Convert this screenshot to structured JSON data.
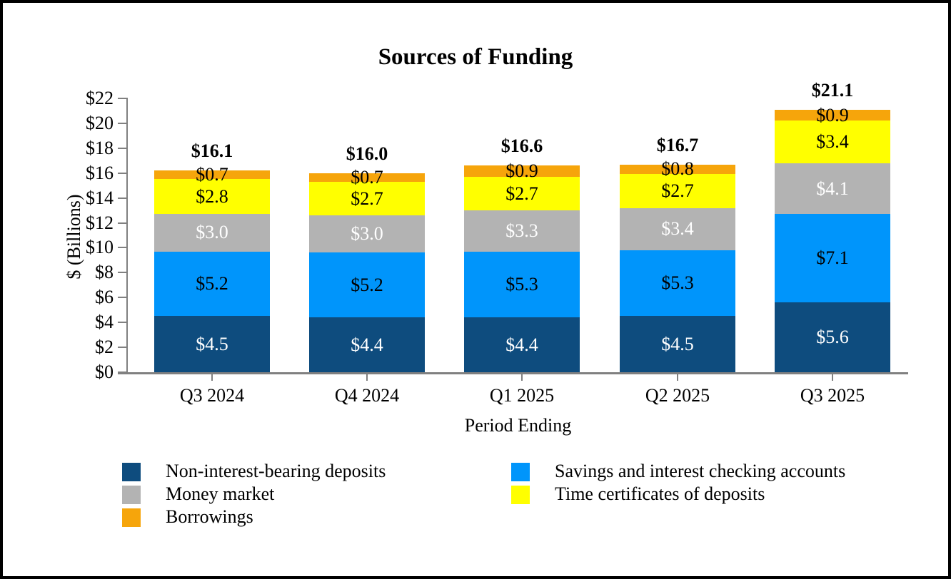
{
  "title": "Sources of Funding",
  "chart_data": {
    "type": "bar",
    "stacked": true,
    "title": "Sources of Funding",
    "xlabel": "Period Ending",
    "ylabel": "$ (Billions)",
    "ylim": [
      0,
      22
    ],
    "ytick_step": 2,
    "ytick_labels": [
      "$0",
      "$2",
      "$4",
      "$6",
      "$8",
      "$10",
      "$12",
      "$14",
      "$16",
      "$18",
      "$20",
      "$22"
    ],
    "grid": false,
    "legend_position": "bottom",
    "axis_color": "#808080",
    "categories": [
      "Q3 2024",
      "Q4 2024",
      "Q1 2025",
      "Q2 2025",
      "Q3 2025"
    ],
    "series": [
      {
        "name": "Non-interest-bearing deposits",
        "color": "#0E4C7E",
        "label_color": "#FFFFFF",
        "values": [
          4.5,
          4.4,
          4.4,
          4.5,
          5.6
        ],
        "labels": [
          "$4.5",
          "$4.4",
          "$4.4",
          "$4.5",
          "$5.6"
        ]
      },
      {
        "name": "Savings and interest checking accounts",
        "color": "#0095FB",
        "label_color": "#000000",
        "values": [
          5.2,
          5.2,
          5.3,
          5.3,
          7.1
        ],
        "labels": [
          "$5.2",
          "$5.2",
          "$5.3",
          "$5.3",
          "$7.1"
        ]
      },
      {
        "name": "Money market",
        "color": "#B3B3B3",
        "label_color": "#FFFFFF",
        "values": [
          3.0,
          3.0,
          3.3,
          3.4,
          4.1
        ],
        "labels": [
          "$3.0",
          "$3.0",
          "$3.3",
          "$3.4",
          "$4.1"
        ]
      },
      {
        "name": "Time certificates of deposits",
        "color": "#FFFF00",
        "label_color": "#000000",
        "values": [
          2.8,
          2.7,
          2.7,
          2.7,
          3.4
        ],
        "labels": [
          "$2.8",
          "$2.7",
          "$2.7",
          "$2.7",
          "$3.4"
        ]
      },
      {
        "name": "Borrowings",
        "color": "#F6A50B",
        "label_color": "#000000",
        "values": [
          0.7,
          0.7,
          0.9,
          0.8,
          0.9
        ],
        "labels": [
          "$0.7",
          "$0.7",
          "$0.9",
          "$0.8",
          "$0.9"
        ]
      }
    ],
    "totals": [
      "$16.1",
      "$16.0",
      "$16.6",
      "$16.7",
      "$21.1"
    ],
    "legend": {
      "columns": [
        [
          {
            "label": "Non-interest-bearing deposits",
            "color": "#0E4C7E"
          },
          {
            "label": "Money market",
            "color": "#B3B3B3"
          },
          {
            "label": "Borrowings",
            "color": "#F6A50B"
          }
        ],
        [
          {
            "label": "Savings and interest checking accounts",
            "color": "#0095FB"
          },
          {
            "label": "Time certificates of deposits",
            "color": "#FFFF00"
          }
        ]
      ]
    }
  }
}
